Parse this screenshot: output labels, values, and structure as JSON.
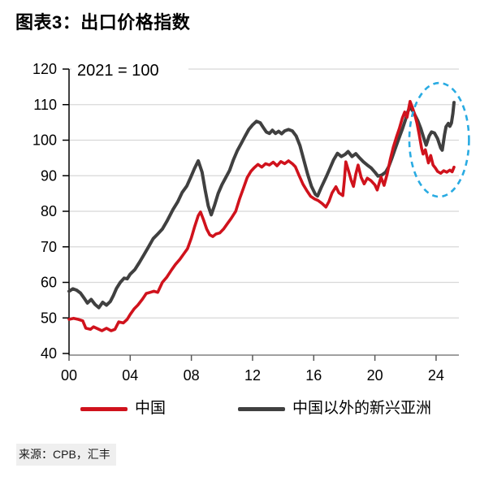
{
  "header": {
    "title": "图表3：出口价格指数"
  },
  "source": {
    "text": "来源：CPB，汇丰"
  },
  "legend": {
    "items": [
      {
        "label": "中国",
        "color": "#d0121c"
      },
      {
        "label": "中国以外的新兴亚洲",
        "color": "#404040"
      }
    ]
  },
  "colors": {
    "china_line": "#d0121c",
    "asia_line": "#404040",
    "grid": "#d8d8d8",
    "x_axis": "#808080",
    "y_axis": "#000000",
    "highlight_ellipse": "#29abe2",
    "source_background": "#efefef"
  },
  "chart_data": {
    "type": "line",
    "title": "图表3：出口价格指数",
    "note": "2021 = 100",
    "xlabel": "",
    "ylabel": "",
    "ylim": [
      40,
      120
    ],
    "xlim": [
      2000,
      2025.6
    ],
    "grid": "horizontal",
    "legend_position": "bottom",
    "y_ticks": [
      40,
      50,
      60,
      70,
      80,
      90,
      100,
      110,
      120
    ],
    "x_ticks": [
      {
        "year": 2000,
        "label": "00"
      },
      {
        "year": 2004,
        "label": "04"
      },
      {
        "year": 2008,
        "label": "08"
      },
      {
        "year": 2012,
        "label": "12"
      },
      {
        "year": 2016,
        "label": "16"
      },
      {
        "year": 2020,
        "label": "20"
      },
      {
        "year": 2024,
        "label": "24"
      }
    ],
    "highlight_ellipse": {
      "center_year": 2024.2,
      "center_value": 100.1,
      "rx_years": 1.95,
      "ry_units": 16
    },
    "series": [
      {
        "name": "中国以外的新兴亚洲",
        "color": "#404040",
        "width": 4,
        "points": [
          [
            2000.0,
            57.5
          ],
          [
            2000.25,
            58.2
          ],
          [
            2000.5,
            57.8
          ],
          [
            2000.75,
            57.0
          ],
          [
            2001.0,
            55.5
          ],
          [
            2001.2,
            54.2
          ],
          [
            2001.45,
            55.2
          ],
          [
            2001.7,
            53.8
          ],
          [
            2001.95,
            52.9
          ],
          [
            2002.2,
            54.4
          ],
          [
            2002.45,
            53.6
          ],
          [
            2002.7,
            54.6
          ],
          [
            2002.9,
            56.3
          ],
          [
            2003.1,
            58.3
          ],
          [
            2003.35,
            60.0
          ],
          [
            2003.6,
            61.2
          ],
          [
            2003.8,
            61.0
          ],
          [
            2004.0,
            62.3
          ],
          [
            2004.3,
            63.6
          ],
          [
            2004.6,
            65.6
          ],
          [
            2004.9,
            67.8
          ],
          [
            2005.2,
            70.0
          ],
          [
            2005.5,
            72.3
          ],
          [
            2005.8,
            73.6
          ],
          [
            2006.1,
            75.0
          ],
          [
            2006.4,
            77.2
          ],
          [
            2006.8,
            80.5
          ],
          [
            2007.1,
            82.6
          ],
          [
            2007.4,
            85.3
          ],
          [
            2007.7,
            87.1
          ],
          [
            2007.95,
            89.5
          ],
          [
            2008.2,
            92.0
          ],
          [
            2008.45,
            94.2
          ],
          [
            2008.7,
            91.0
          ],
          [
            2008.9,
            86.0
          ],
          [
            2009.1,
            81.5
          ],
          [
            2009.3,
            79.0
          ],
          [
            2009.5,
            81.5
          ],
          [
            2009.75,
            85.0
          ],
          [
            2010.0,
            87.5
          ],
          [
            2010.25,
            89.5
          ],
          [
            2010.5,
            91.5
          ],
          [
            2010.75,
            94.5
          ],
          [
            2011.0,
            97.0
          ],
          [
            2011.25,
            99.0
          ],
          [
            2011.5,
            101.0
          ],
          [
            2011.75,
            103.0
          ],
          [
            2012.0,
            104.3
          ],
          [
            2012.25,
            105.3
          ],
          [
            2012.5,
            104.9
          ],
          [
            2012.7,
            103.6
          ],
          [
            2012.9,
            102.3
          ],
          [
            2013.1,
            101.9
          ],
          [
            2013.3,
            102.8
          ],
          [
            2013.5,
            101.9
          ],
          [
            2013.7,
            102.5
          ],
          [
            2013.9,
            101.8
          ],
          [
            2014.1,
            102.6
          ],
          [
            2014.35,
            103.0
          ],
          [
            2014.6,
            102.6
          ],
          [
            2014.85,
            101.2
          ],
          [
            2015.1,
            98.5
          ],
          [
            2015.35,
            94.5
          ],
          [
            2015.6,
            90.5
          ],
          [
            2015.85,
            87.0
          ],
          [
            2016.1,
            84.8
          ],
          [
            2016.25,
            84.3
          ],
          [
            2016.5,
            86.8
          ],
          [
            2016.8,
            89.5
          ],
          [
            2017.05,
            92.0
          ],
          [
            2017.3,
            94.5
          ],
          [
            2017.55,
            96.3
          ],
          [
            2017.8,
            95.4
          ],
          [
            2018.05,
            96.0
          ],
          [
            2018.25,
            96.8
          ],
          [
            2018.5,
            95.4
          ],
          [
            2018.75,
            96.2
          ],
          [
            2019.0,
            95.0
          ],
          [
            2019.25,
            93.9
          ],
          [
            2019.5,
            93.0
          ],
          [
            2019.75,
            92.2
          ],
          [
            2020.0,
            91.0
          ],
          [
            2020.2,
            89.9
          ],
          [
            2020.45,
            90.2
          ],
          [
            2020.7,
            91.0
          ],
          [
            2020.9,
            92.5
          ],
          [
            2021.1,
            94.8
          ],
          [
            2021.3,
            97.3
          ],
          [
            2021.55,
            100.3
          ],
          [
            2021.8,
            103.2
          ],
          [
            2022.0,
            105.8
          ],
          [
            2022.15,
            108.0
          ],
          [
            2022.3,
            109.3
          ],
          [
            2022.45,
            108.4
          ],
          [
            2022.6,
            107.2
          ],
          [
            2022.8,
            105.5
          ],
          [
            2023.0,
            103.3
          ],
          [
            2023.2,
            100.5
          ],
          [
            2023.35,
            98.6
          ],
          [
            2023.55,
            101.2
          ],
          [
            2023.7,
            102.3
          ],
          [
            2023.9,
            102.0
          ],
          [
            2024.1,
            100.4
          ],
          [
            2024.3,
            97.8
          ],
          [
            2024.4,
            97.2
          ],
          [
            2024.55,
            101.5
          ],
          [
            2024.65,
            103.8
          ],
          [
            2024.8,
            104.7
          ],
          [
            2024.9,
            103.9
          ],
          [
            2025.0,
            104.8
          ],
          [
            2025.1,
            107.5
          ],
          [
            2025.17,
            110.6
          ]
        ]
      },
      {
        "name": "中国",
        "color": "#d0121c",
        "width": 3.6,
        "points": [
          [
            2000.0,
            49.6
          ],
          [
            2000.3,
            49.9
          ],
          [
            2000.6,
            49.6
          ],
          [
            2000.9,
            49.2
          ],
          [
            2001.1,
            47.1
          ],
          [
            2001.4,
            46.8
          ],
          [
            2001.6,
            47.5
          ],
          [
            2001.9,
            46.9
          ],
          [
            2002.15,
            46.4
          ],
          [
            2002.45,
            47.1
          ],
          [
            2002.75,
            46.4
          ],
          [
            2003.0,
            46.8
          ],
          [
            2003.25,
            48.9
          ],
          [
            2003.55,
            48.6
          ],
          [
            2003.8,
            49.6
          ],
          [
            2004.0,
            51.0
          ],
          [
            2004.25,
            52.5
          ],
          [
            2004.5,
            53.6
          ],
          [
            2004.8,
            55.3
          ],
          [
            2005.05,
            56.9
          ],
          [
            2005.3,
            57.2
          ],
          [
            2005.55,
            57.5
          ],
          [
            2005.8,
            57.2
          ],
          [
            2006.1,
            60.0
          ],
          [
            2006.4,
            61.5
          ],
          [
            2006.7,
            63.5
          ],
          [
            2006.95,
            65.0
          ],
          [
            2007.25,
            66.5
          ],
          [
            2007.5,
            68.0
          ],
          [
            2007.75,
            69.5
          ],
          [
            2008.0,
            72.5
          ],
          [
            2008.2,
            75.5
          ],
          [
            2008.45,
            78.8
          ],
          [
            2008.6,
            79.8
          ],
          [
            2008.8,
            77.5
          ],
          [
            2009.0,
            75.0
          ],
          [
            2009.2,
            73.4
          ],
          [
            2009.4,
            72.9
          ],
          [
            2009.6,
            73.6
          ],
          [
            2009.85,
            73.9
          ],
          [
            2010.1,
            75.0
          ],
          [
            2010.35,
            76.5
          ],
          [
            2010.6,
            78.0
          ],
          [
            2010.9,
            80.0
          ],
          [
            2011.15,
            83.5
          ],
          [
            2011.4,
            86.5
          ],
          [
            2011.65,
            89.5
          ],
          [
            2011.9,
            91.3
          ],
          [
            2012.1,
            92.2
          ],
          [
            2012.35,
            93.2
          ],
          [
            2012.6,
            92.4
          ],
          [
            2012.85,
            93.4
          ],
          [
            2013.1,
            93.0
          ],
          [
            2013.35,
            93.8
          ],
          [
            2013.6,
            92.8
          ],
          [
            2013.85,
            94.0
          ],
          [
            2014.1,
            93.4
          ],
          [
            2014.35,
            94.2
          ],
          [
            2014.6,
            93.4
          ],
          [
            2014.8,
            92.5
          ],
          [
            2015.05,
            90.0
          ],
          [
            2015.3,
            87.6
          ],
          [
            2015.55,
            85.8
          ],
          [
            2015.8,
            84.2
          ],
          [
            2016.05,
            83.5
          ],
          [
            2016.3,
            83.0
          ],
          [
            2016.55,
            82.2
          ],
          [
            2016.8,
            81.2
          ],
          [
            2017.0,
            82.8
          ],
          [
            2017.2,
            85.2
          ],
          [
            2017.45,
            86.9
          ],
          [
            2017.65,
            85.2
          ],
          [
            2017.9,
            84.4
          ],
          [
            2018.0,
            88.5
          ],
          [
            2018.1,
            93.9
          ],
          [
            2018.3,
            91.0
          ],
          [
            2018.45,
            88.7
          ],
          [
            2018.6,
            87.0
          ],
          [
            2018.75,
            90.5
          ],
          [
            2018.9,
            93.0
          ],
          [
            2019.1,
            89.5
          ],
          [
            2019.3,
            87.7
          ],
          [
            2019.5,
            89.3
          ],
          [
            2019.75,
            88.6
          ],
          [
            2020.0,
            87.4
          ],
          [
            2020.15,
            86.0
          ],
          [
            2020.4,
            89.6
          ],
          [
            2020.6,
            87.3
          ],
          [
            2020.8,
            90.5
          ],
          [
            2021.0,
            94.5
          ],
          [
            2021.2,
            98.0
          ],
          [
            2021.4,
            100.8
          ],
          [
            2021.6,
            103.3
          ],
          [
            2021.8,
            106.3
          ],
          [
            2021.95,
            107.9
          ],
          [
            2022.1,
            106.4
          ],
          [
            2022.3,
            110.9
          ],
          [
            2022.45,
            109.2
          ],
          [
            2022.6,
            107.3
          ],
          [
            2022.75,
            104.8
          ],
          [
            2022.9,
            101.5
          ],
          [
            2023.05,
            97.8
          ],
          [
            2023.15,
            96.1
          ],
          [
            2023.3,
            97.3
          ],
          [
            2023.5,
            93.6
          ],
          [
            2023.65,
            95.7
          ],
          [
            2023.8,
            93.0
          ],
          [
            2023.95,
            92.2
          ],
          [
            2024.1,
            91.2
          ],
          [
            2024.3,
            90.7
          ],
          [
            2024.5,
            91.4
          ],
          [
            2024.7,
            91.0
          ],
          [
            2024.9,
            91.6
          ],
          [
            2025.05,
            91.1
          ],
          [
            2025.17,
            92.4
          ]
        ]
      }
    ]
  }
}
